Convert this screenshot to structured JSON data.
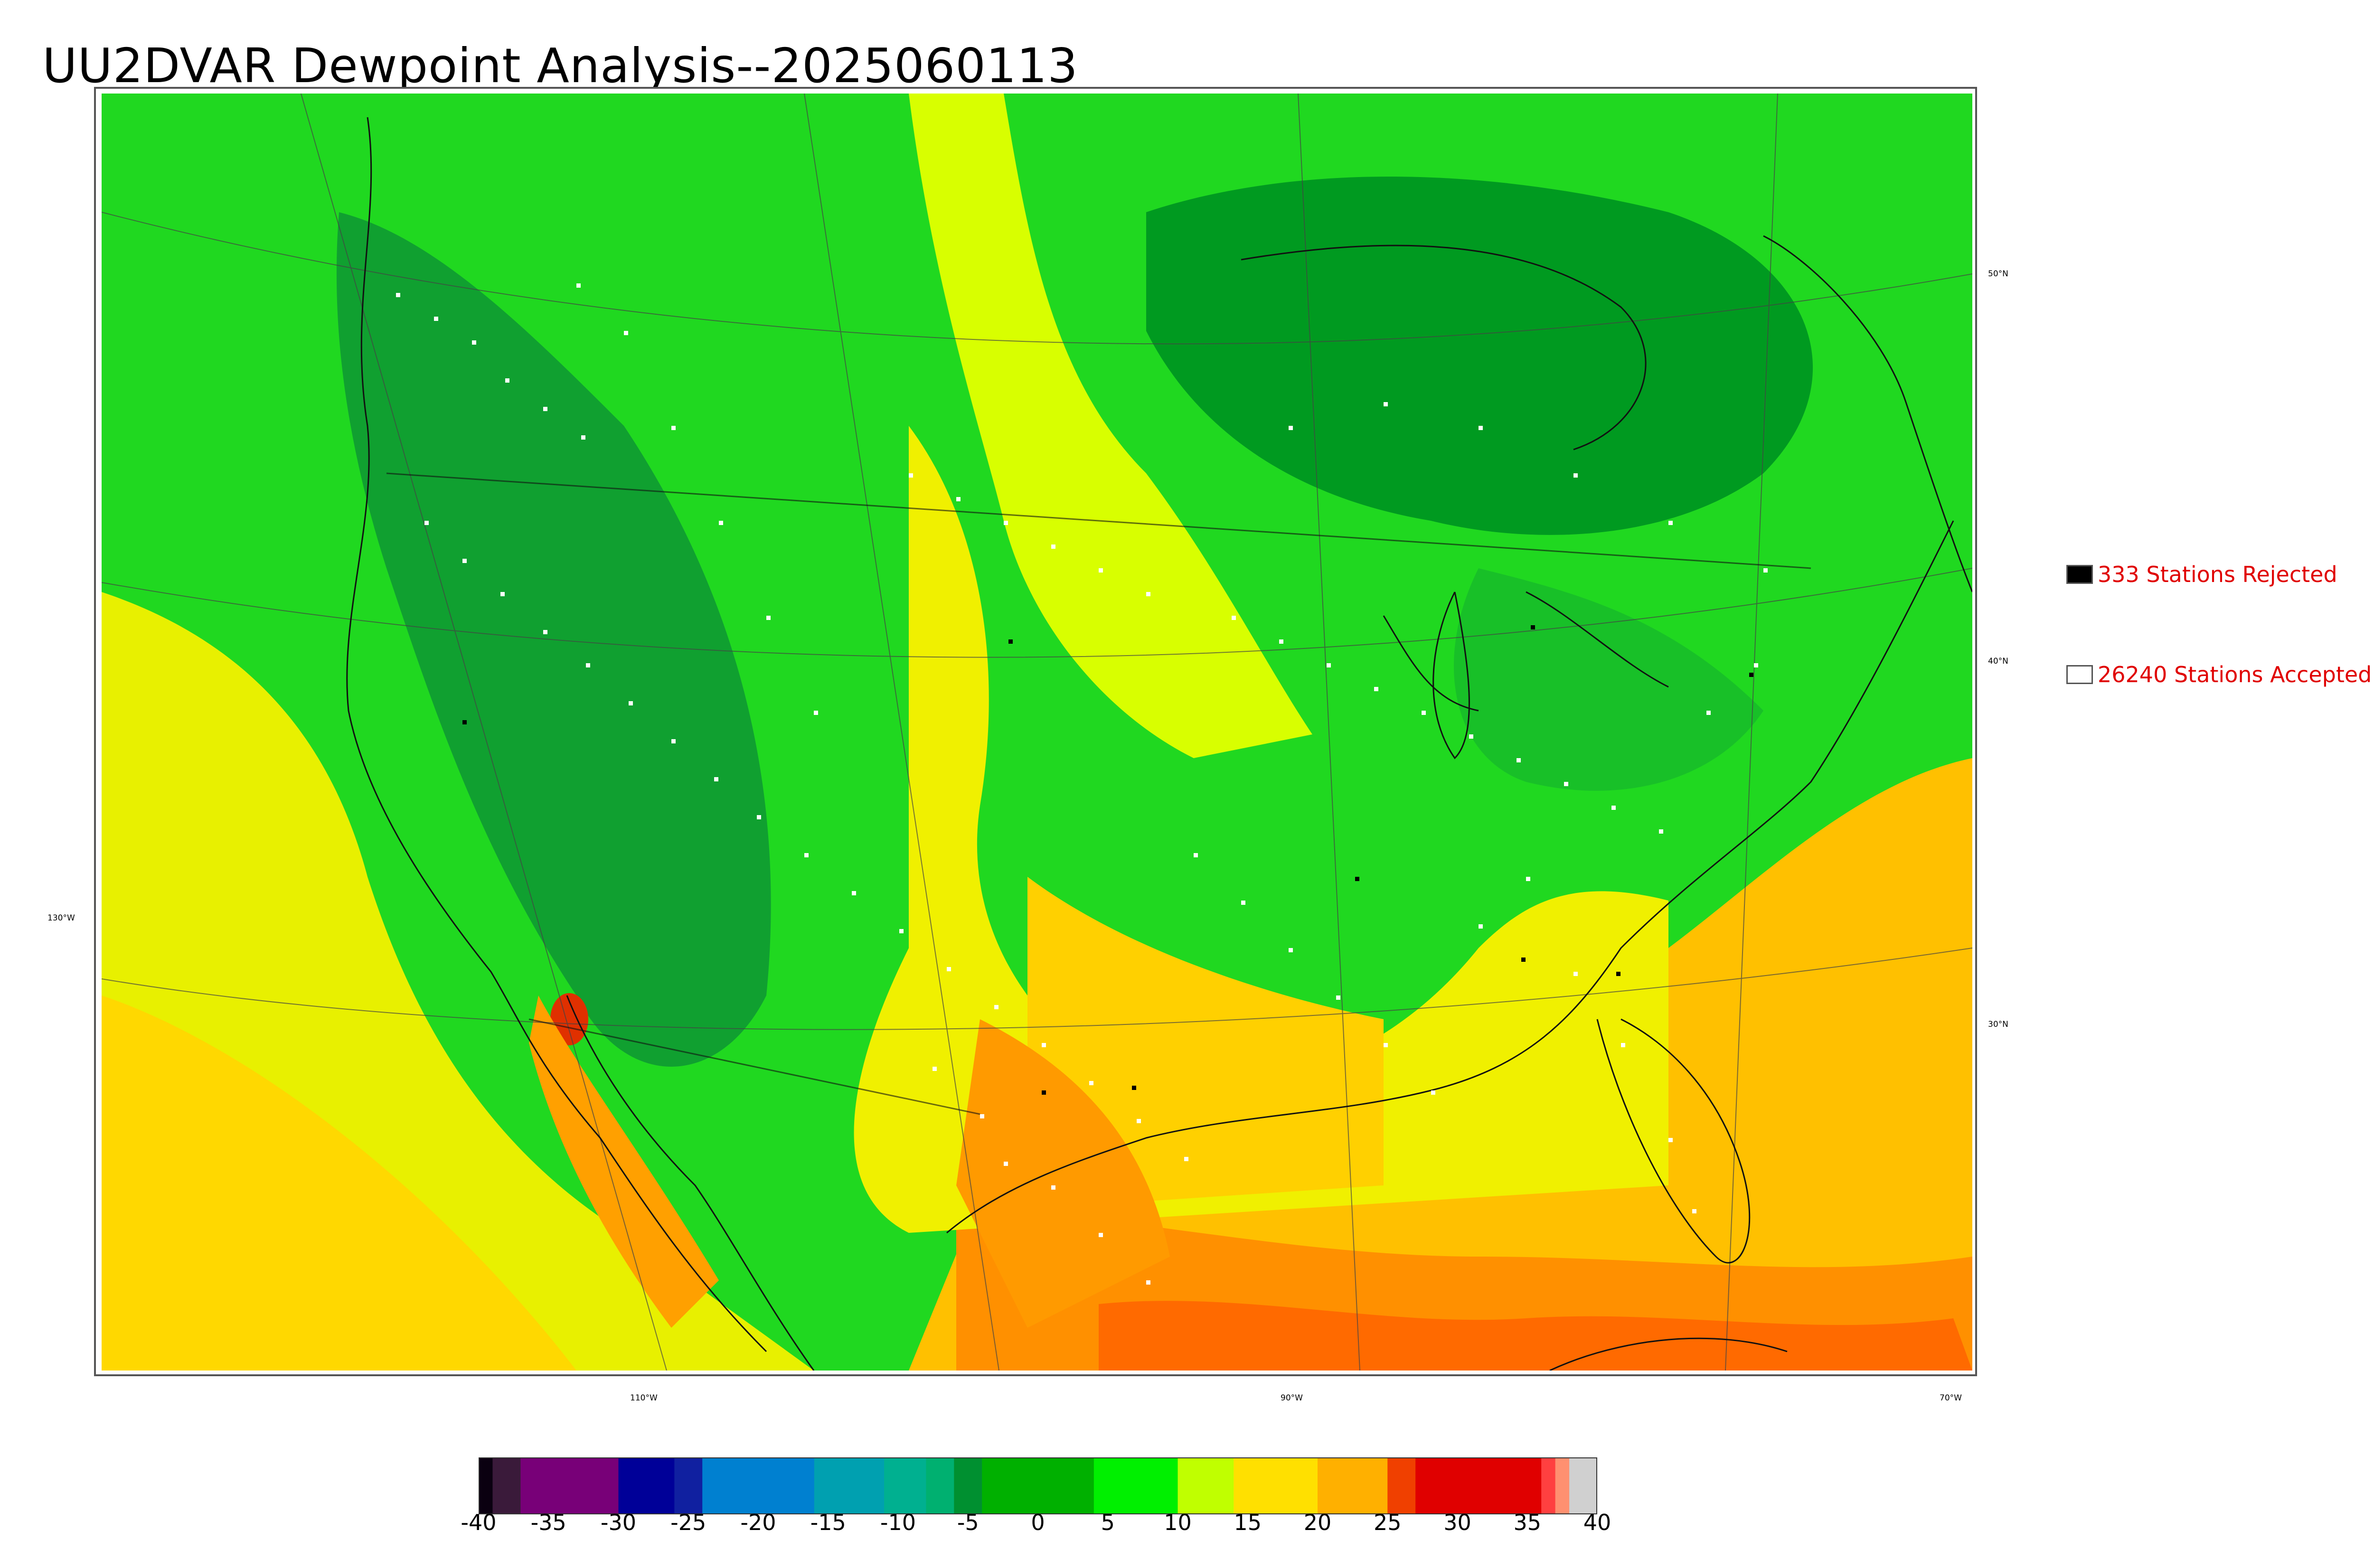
{
  "title": "UU2DVAR Dewpoint Analysis--2025060113",
  "lat_labels": [
    "50°N",
    "40°N",
    "30°N"
  ],
  "lon_labels": [
    "130°W",
    "110°W",
    "90°W",
    "70°W"
  ],
  "legend": {
    "rejected": {
      "label": "333 Stations Rejected",
      "swatch_color": "#000000"
    },
    "accepted": {
      "label": "26240 Stations Accepted",
      "swatch_color": "#ffffff"
    }
  },
  "colorbar": {
    "ticks": [
      "-40",
      "-35",
      "-30",
      "-25",
      "-20",
      "-15",
      "-10",
      "-5",
      "0",
      "5",
      "10",
      "15",
      "20",
      "25",
      "30",
      "35",
      "40"
    ],
    "colors": [
      {
        "from": -40,
        "to": -39,
        "color": "#0a0010"
      },
      {
        "from": -39,
        "to": -37,
        "color": "#3a1a3a"
      },
      {
        "from": -37,
        "to": -30,
        "color": "#780078"
      },
      {
        "from": -30,
        "to": -26,
        "color": "#000098"
      },
      {
        "from": -26,
        "to": -24,
        "color": "#1020a0"
      },
      {
        "from": -24,
        "to": -16,
        "color": "#0080d0"
      },
      {
        "from": -16,
        "to": -11,
        "color": "#00a0b0"
      },
      {
        "from": -11,
        "to": -8,
        "color": "#00b090"
      },
      {
        "from": -8,
        "to": -6,
        "color": "#00b070"
      },
      {
        "from": -6,
        "to": -4,
        "color": "#009030"
      },
      {
        "from": -4,
        "to": 4,
        "color": "#00b000"
      },
      {
        "from": 4,
        "to": 10,
        "color": "#00f000"
      },
      {
        "from": 10,
        "to": 14,
        "color": "#c0ff00"
      },
      {
        "from": 14,
        "to": 20,
        "color": "#ffe000"
      },
      {
        "from": 20,
        "to": 25,
        "color": "#ffb000"
      },
      {
        "from": 25,
        "to": 27,
        "color": "#f04000"
      },
      {
        "from": 27,
        "to": 36,
        "color": "#e00000"
      },
      {
        "from": 36,
        "to": 37,
        "color": "#ff4040"
      },
      {
        "from": 37,
        "to": 38,
        "color": "#ff9070"
      },
      {
        "from": 38,
        "to": 40,
        "color": "#d0d0d0"
      }
    ]
  }
}
